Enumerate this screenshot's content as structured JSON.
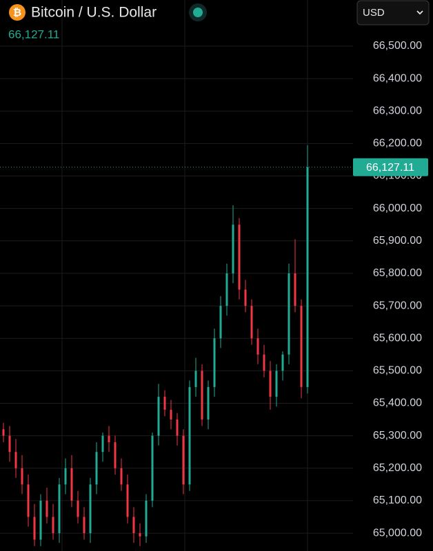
{
  "chart_data": {
    "type": "candlestick",
    "icon": "₿",
    "title": "Bitcoin / U.S. Dollar",
    "currency": "USD",
    "last_price": {
      "value": 66127.11,
      "label": "66,127.11"
    },
    "up_color": "#22ab94",
    "down_color": "#f23645",
    "grid": true,
    "ylim": [
      64945,
      66642
    ],
    "yticks": [
      {
        "value": 65000,
        "label": "65,000.00"
      },
      {
        "value": 65100,
        "label": "65,100.00"
      },
      {
        "value": 65200,
        "label": "65,200.00"
      },
      {
        "value": 65300,
        "label": "65,300.00"
      },
      {
        "value": 65400,
        "label": "65,400.00"
      },
      {
        "value": 65500,
        "label": "65,500.00"
      },
      {
        "value": 65600,
        "label": "65,600.00"
      },
      {
        "value": 65700,
        "label": "65,700.00"
      },
      {
        "value": 65800,
        "label": "65,800.00"
      },
      {
        "value": 65900,
        "label": "65,900.00"
      },
      {
        "value": 66000,
        "label": "66,000.00"
      },
      {
        "value": 66100,
        "label": "66,100.00"
      },
      {
        "value": 66200,
        "label": "66,200.00"
      },
      {
        "value": 66300,
        "label": "66,300.00"
      },
      {
        "value": 66400,
        "label": "66,400.00"
      },
      {
        "value": 66500,
        "label": "66,500.00"
      }
    ],
    "open": [
      65320,
      65300,
      65250,
      65200,
      65150,
      65050,
      64980,
      65100,
      65050,
      65000,
      65150,
      65200,
      65100,
      65050,
      65000,
      65150,
      65250,
      65300,
      65280,
      65200,
      65150,
      65050,
      65000,
      64990,
      65100,
      65300,
      65420,
      65380,
      65350,
      65300,
      65150,
      65450,
      65500,
      65350,
      65450,
      65600,
      65700,
      65800,
      65950,
      65750,
      65700,
      65600,
      65550,
      65500,
      65420,
      65500,
      65550,
      65800,
      65700,
      65450
    ],
    "high": [
      65340,
      65330,
      65290,
      65240,
      65180,
      65090,
      65120,
      65140,
      65090,
      65170,
      65230,
      65240,
      65130,
      65080,
      65170,
      65280,
      65310,
      65330,
      65300,
      65230,
      65180,
      65080,
      65030,
      65120,
      65310,
      65460,
      65440,
      65410,
      65370,
      65320,
      65470,
      65540,
      65520,
      65470,
      65630,
      65730,
      65830,
      66010,
      65970,
      65780,
      65720,
      65630,
      65580,
      65530,
      65520,
      65560,
      65830,
      65905,
      65720,
      66195
    ],
    "low": [
      65280,
      65220,
      65170,
      65120,
      65020,
      64960,
      64960,
      65030,
      64980,
      64970,
      65120,
      65080,
      65030,
      64980,
      64970,
      65120,
      65220,
      65250,
      65180,
      65130,
      65030,
      64970,
      64960,
      64970,
      65080,
      65270,
      65360,
      65320,
      65270,
      65120,
      65130,
      65420,
      65330,
      65320,
      65420,
      65570,
      65670,
      65770,
      65720,
      65680,
      65580,
      65520,
      65480,
      65380,
      65390,
      65470,
      65520,
      65680,
      65415,
      65430
    ],
    "close": [
      65300,
      65250,
      65200,
      65150,
      65050,
      64980,
      65100,
      65050,
      65000,
      65150,
      65200,
      65100,
      65050,
      65000,
      65150,
      65250,
      65300,
      65280,
      65200,
      65150,
      65050,
      65000,
      64990,
      65100,
      65300,
      65420,
      65380,
      65350,
      65300,
      65150,
      65450,
      65500,
      65350,
      65450,
      65600,
      65700,
      65800,
      65950,
      65750,
      65700,
      65600,
      65550,
      65500,
      65420,
      65500,
      65550,
      65800,
      65700,
      65450,
      66127.11
    ]
  }
}
